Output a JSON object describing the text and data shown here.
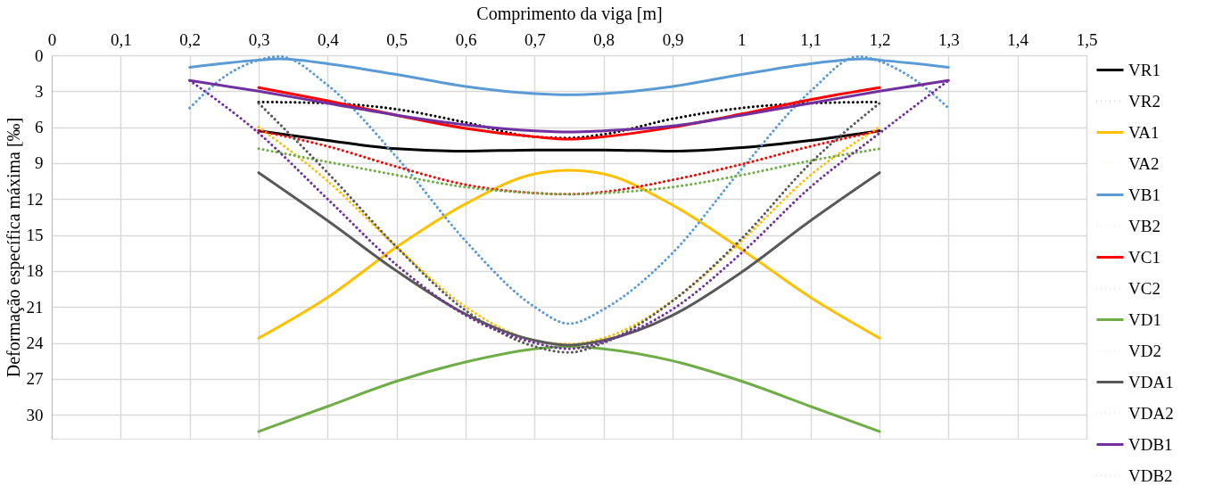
{
  "chart_data": {
    "type": "line",
    "xlabel": "Comprimento da viga [m]",
    "ylabel": "Deformação específica máxima [‰]",
    "xlim": [
      0,
      1.5
    ],
    "xticks": [
      0,
      {
        "value": 0.1,
        "label": "0,1"
      },
      {
        "value": 0.2,
        "label": "0,2"
      },
      {
        "value": 0.3,
        "label": "0,3"
      },
      {
        "value": 0.4,
        "label": "0,4"
      },
      {
        "value": 0.5,
        "label": "0,5"
      },
      {
        "value": 0.6,
        "label": "0,6"
      },
      {
        "value": 0.7,
        "label": "0,7"
      },
      {
        "value": 0.8,
        "label": "0,8"
      },
      {
        "value": 0.9,
        "label": "0,9"
      },
      1,
      {
        "value": 1.1,
        "label": "1,1"
      },
      {
        "value": 1.2,
        "label": "1,2"
      },
      {
        "value": 1.3,
        "label": "1,3"
      },
      {
        "value": 1.4,
        "label": "1,4"
      },
      {
        "value": 1.5,
        "label": "1,5"
      }
    ],
    "ylim": [
      32,
      0
    ],
    "yticks": [
      0,
      3,
      6,
      9,
      12,
      15,
      18,
      21,
      24,
      27,
      30
    ],
    "grid": true,
    "legend": "right",
    "marker": "none",
    "series": [
      {
        "name": "VR1",
        "color": "#000000",
        "line_style": "solid",
        "x": [
          0.3,
          0.4,
          0.5,
          0.6,
          0.7,
          0.75,
          0.8,
          0.9,
          1.0,
          1.1,
          1.2
        ],
        "values": [
          6.3,
          7.1,
          7.8,
          8.0,
          7.9,
          7.9,
          7.9,
          8.0,
          7.7,
          7.1,
          6.3
        ]
      },
      {
        "name": "VR2",
        "color": "#000000",
        "line_style": "dotted",
        "x": [
          0.3,
          0.4,
          0.5,
          0.6,
          0.7,
          0.75,
          0.8,
          0.9,
          1.0,
          1.1,
          1.2
        ],
        "values": [
          3.9,
          4.0,
          4.5,
          5.6,
          6.8,
          6.9,
          6.6,
          5.3,
          4.4,
          4.0,
          3.9
        ]
      },
      {
        "name": "VA1",
        "color": "#ffc000",
        "line_style": "solid",
        "x": [
          0.3,
          0.4,
          0.5,
          0.6,
          0.7,
          0.75,
          0.8,
          0.9,
          1.0,
          1.1,
          1.2
        ],
        "values": [
          23.6,
          20.2,
          16.0,
          12.4,
          9.9,
          9.6,
          9.9,
          12.5,
          16.2,
          20.2,
          23.6
        ]
      },
      {
        "name": "VA2",
        "color": "#ffc000",
        "line_style": "dotted",
        "x": [
          0.3,
          0.4,
          0.5,
          0.6,
          0.7,
          0.75,
          0.8,
          0.9,
          1.0,
          1.1,
          1.2
        ],
        "values": [
          6.0,
          10.5,
          16.0,
          21.0,
          23.8,
          24.1,
          23.6,
          20.5,
          15.5,
          10.0,
          6.0
        ]
      },
      {
        "name": "VB1",
        "color": "#5b9bd5",
        "line_style": "solid",
        "x": [
          0.2,
          0.3,
          0.33,
          0.4,
          0.5,
          0.6,
          0.7,
          0.75,
          0.8,
          0.9,
          1.0,
          1.1,
          1.18,
          1.2,
          1.3
        ],
        "values": [
          1.0,
          0.4,
          0.3,
          0.7,
          1.6,
          2.6,
          3.2,
          3.3,
          3.2,
          2.6,
          1.6,
          0.7,
          0.3,
          0.4,
          1.0
        ]
      },
      {
        "name": "VB2",
        "color": "#5b9bd5",
        "line_style": "dotted",
        "x": [
          0.2,
          0.25,
          0.3,
          0.33,
          0.4,
          0.5,
          0.6,
          0.7,
          0.75,
          0.8,
          0.9,
          1.0,
          1.1,
          1.17,
          1.2,
          1.25,
          1.3
        ],
        "values": [
          4.4,
          1.8,
          0.4,
          0.1,
          2.5,
          8.5,
          15.5,
          21.0,
          22.4,
          21.2,
          16.5,
          9.5,
          3.0,
          0.1,
          0.5,
          2.0,
          4.4
        ]
      },
      {
        "name": "VC1",
        "color": "#ff0000",
        "line_style": "solid",
        "x": [
          0.3,
          0.4,
          0.5,
          0.6,
          0.7,
          0.75,
          0.8,
          0.9,
          1.0,
          1.1,
          1.2
        ],
        "values": [
          2.7,
          3.8,
          5.0,
          6.1,
          6.8,
          7.0,
          6.8,
          6.0,
          4.9,
          3.7,
          2.7
        ]
      },
      {
        "name": "VC2",
        "color": "#ff0000",
        "line_style": "dotted",
        "x": [
          0.3,
          0.4,
          0.5,
          0.6,
          0.7,
          0.75,
          0.8,
          0.9,
          1.0,
          1.1,
          1.2
        ],
        "values": [
          6.3,
          7.6,
          9.3,
          10.8,
          11.5,
          11.6,
          11.4,
          10.4,
          9.1,
          7.6,
          6.3
        ]
      },
      {
        "name": "VD1",
        "color": "#70ad47",
        "line_style": "solid",
        "x": [
          0.3,
          0.4,
          0.5,
          0.6,
          0.7,
          0.75,
          0.8,
          0.9,
          1.0,
          1.1,
          1.2
        ],
        "values": [
          31.4,
          29.3,
          27.2,
          25.6,
          24.5,
          24.3,
          24.5,
          25.5,
          27.2,
          29.3,
          31.4
        ]
      },
      {
        "name": "VD2",
        "color": "#70ad47",
        "line_style": "dotted",
        "x": [
          0.3,
          0.4,
          0.5,
          0.6,
          0.7,
          0.75,
          0.8,
          0.9,
          1.0,
          1.1,
          1.2
        ],
        "values": [
          7.8,
          8.9,
          10.0,
          11.0,
          11.5,
          11.6,
          11.5,
          11.0,
          10.0,
          8.8,
          7.8
        ]
      },
      {
        "name": "VDA1",
        "color": "#595959",
        "line_style": "solid",
        "x": [
          0.3,
          0.4,
          0.5,
          0.6,
          0.7,
          0.75,
          0.8,
          0.9,
          1.0,
          1.1,
          1.2
        ],
        "values": [
          9.8,
          13.8,
          18.0,
          21.6,
          23.8,
          24.2,
          23.8,
          21.7,
          18.1,
          13.8,
          9.8
        ]
      },
      {
        "name": "VDA2",
        "color": "#595959",
        "line_style": "dotted",
        "x": [
          0.3,
          0.4,
          0.5,
          0.6,
          0.7,
          0.75,
          0.8,
          0.9,
          1.0,
          1.1,
          1.2
        ],
        "values": [
          4.0,
          9.8,
          16.0,
          21.3,
          24.3,
          24.8,
          24.0,
          20.5,
          15.3,
          9.0,
          4.0
        ]
      },
      {
        "name": "VDB1",
        "color": "#7030a0",
        "line_style": "solid",
        "x": [
          0.2,
          0.3,
          0.4,
          0.5,
          0.6,
          0.7,
          0.75,
          0.8,
          0.9,
          1.0,
          1.1,
          1.2,
          1.3
        ],
        "values": [
          2.1,
          3.0,
          4.0,
          5.0,
          5.8,
          6.3,
          6.4,
          6.3,
          5.9,
          5.0,
          4.0,
          3.0,
          2.1
        ]
      },
      {
        "name": "VDB2",
        "color": "#7030a0",
        "line_style": "dotted",
        "x": [
          0.2,
          0.3,
          0.4,
          0.5,
          0.6,
          0.7,
          0.75,
          0.8,
          0.9,
          1.0,
          1.1,
          1.2,
          1.3
        ],
        "values": [
          2.1,
          6.5,
          12.0,
          17.5,
          21.7,
          24.0,
          24.5,
          23.9,
          21.2,
          16.5,
          11.0,
          6.5,
          2.1
        ]
      }
    ]
  }
}
